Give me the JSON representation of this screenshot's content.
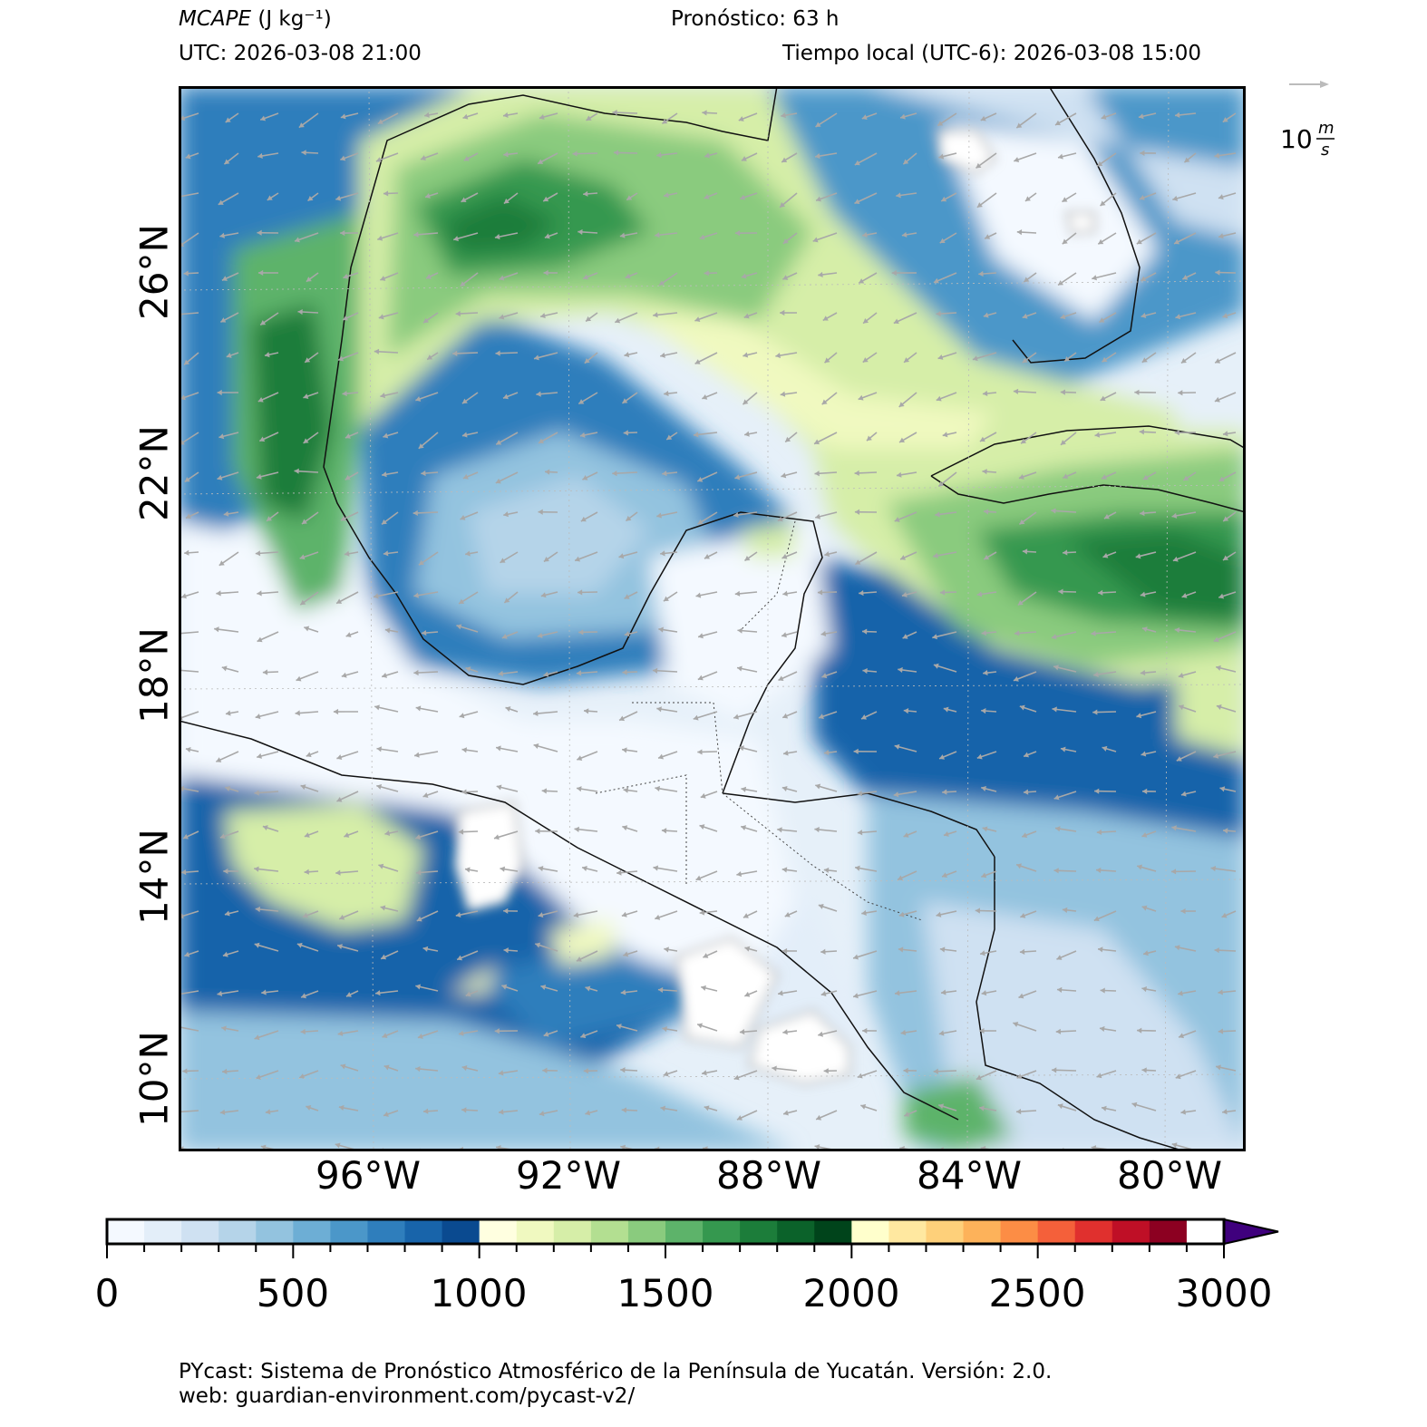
{
  "header": {
    "variable": "MCAPE",
    "units": "(J kg⁻¹)",
    "forecast": "Pronóstico: 63 h",
    "utc": "UTC:  2026-03-08 21:00",
    "local": "Tiempo local (UTC-6): 2026-03-08 15:00"
  },
  "vector_ref": {
    "value": "10",
    "unit_num": "m",
    "unit_den": "s"
  },
  "axes": {
    "lat_labels": [
      "26°N",
      "22°N",
      "18°N",
      "14°N",
      "10°N"
    ],
    "lon_labels": [
      "96°W",
      "92°W",
      "88°W",
      "84°W",
      "80°W"
    ]
  },
  "colorbar": {
    "tick_labels": [
      "0",
      "500",
      "1000",
      "1500",
      "2000",
      "2500",
      "3000"
    ],
    "min": 0,
    "max": 3000,
    "step": 100,
    "extend": "max",
    "colors": [
      "#f4f9ff",
      "#e3eef9",
      "#cfe1f2",
      "#b5d4e9",
      "#93c3df",
      "#6daed5",
      "#4b97c9",
      "#2f7ebc",
      "#1864aa",
      "#0a4a90",
      "#ffffe0",
      "#f0f9c0",
      "#d6eea8",
      "#b3df91",
      "#8acb7e",
      "#5db36a",
      "#35984f",
      "#1c7d3a",
      "#0b622a",
      "#00441b",
      "#ffffcc",
      "#ffe8a0",
      "#fed07a",
      "#fdb25a",
      "#fc8d45",
      "#f4603a",
      "#e0302e",
      "#bf0f26",
      "#8c0021",
      "#ffffff",
      "#f2f0f7",
      "#dadaeb",
      "#bcbddc",
      "#9e9ac8",
      "#807dba",
      "#6a51a3",
      "#54278f",
      "#3f007d"
    ]
  },
  "footer": {
    "line1": "PYcast: Sistema de Pronóstico Atmosférico de la Península de Yucatán. Versión: 2.0.",
    "line2": "web: guardian-environment.com/pycast-v2/"
  }
}
